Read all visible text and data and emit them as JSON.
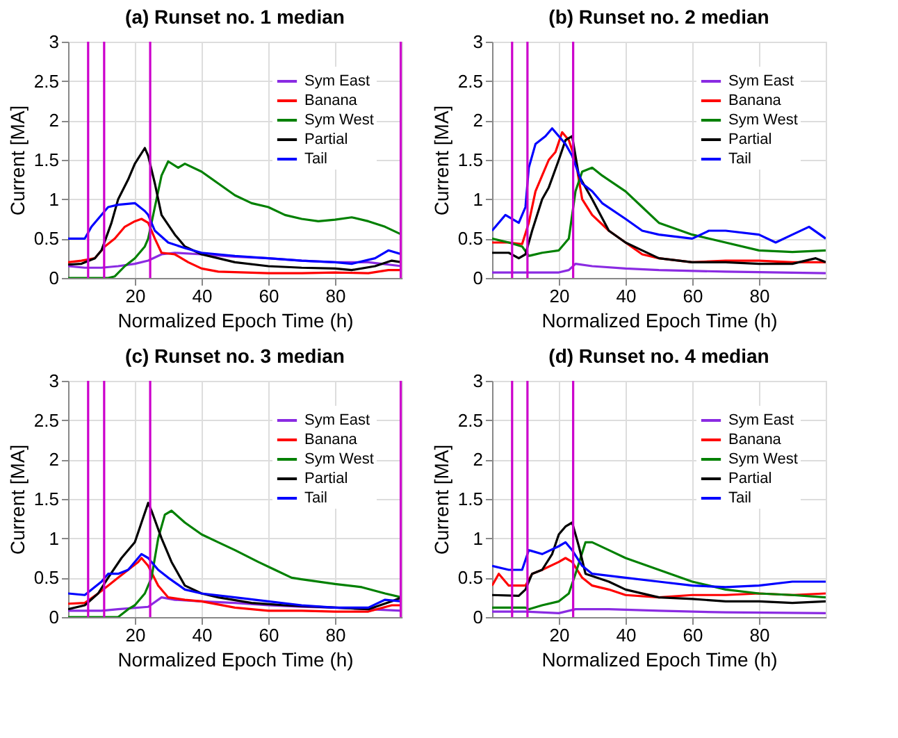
{
  "chart_data": [
    {
      "type": "line",
      "title": "(a) Runset no. 1 median",
      "xlabel": "Normalized Epoch Time (h)",
      "ylabel": "Current [MA]",
      "xlim": [
        0,
        100
      ],
      "xticks": [
        20,
        40,
        60,
        80
      ],
      "ylim": [
        0,
        3
      ],
      "yticks": [
        0,
        0.5,
        1,
        1.5,
        2,
        2.5,
        3
      ],
      "grid": true,
      "legend": "top right",
      "line_style": "solid",
      "ref_lines": [
        {
          "axis": "x",
          "value": 6,
          "color": "#cc00cc"
        },
        {
          "axis": "x",
          "value": 10.8,
          "color": "#cc00cc"
        },
        {
          "axis": "x",
          "value": 24.6,
          "color": "#cc00cc"
        },
        {
          "axis": "x",
          "value": 99.7,
          "color": "#cc00cc"
        }
      ],
      "series": [
        {
          "name": "Sym East",
          "color": "#8a2be2",
          "x": [
            0,
            5,
            10,
            15,
            20,
            24,
            28,
            32,
            40,
            50,
            60,
            70,
            80,
            90,
            100
          ],
          "values": [
            0.15,
            0.13,
            0.13,
            0.15,
            0.18,
            0.22,
            0.3,
            0.32,
            0.3,
            0.27,
            0.25,
            0.22,
            0.2,
            0.2,
            0.15
          ]
        },
        {
          "name": "Banana",
          "color": "#ff0000",
          "x": [
            0,
            4,
            8,
            11,
            14,
            17,
            20,
            22,
            24,
            26,
            28,
            32,
            36,
            40,
            45,
            60,
            70,
            80,
            90,
            96,
            100
          ],
          "values": [
            0.2,
            0.22,
            0.25,
            0.4,
            0.5,
            0.65,
            0.72,
            0.75,
            0.7,
            0.5,
            0.32,
            0.3,
            0.2,
            0.12,
            0.08,
            0.06,
            0.06,
            0.07,
            0.06,
            0.1,
            0.1
          ]
        },
        {
          "name": "Sym West",
          "color": "#008000",
          "x": [
            0,
            12,
            14,
            17,
            20,
            23,
            24,
            26,
            28,
            30,
            33,
            35,
            40,
            45,
            50,
            55,
            60,
            65,
            70,
            75,
            80,
            85,
            90,
            95,
            100
          ],
          "values": [
            0,
            0,
            0.02,
            0.15,
            0.25,
            0.4,
            0.5,
            0.9,
            1.3,
            1.48,
            1.4,
            1.45,
            1.35,
            1.2,
            1.05,
            0.95,
            0.9,
            0.8,
            0.75,
            0.72,
            0.74,
            0.77,
            0.72,
            0.65,
            0.55
          ]
        },
        {
          "name": "Partial",
          "color": "#000000",
          "x": [
            0,
            4,
            8,
            10,
            13,
            15,
            18,
            20,
            23,
            24,
            26,
            28,
            32,
            35,
            40,
            45,
            50,
            60,
            70,
            80,
            85,
            92,
            97,
            100
          ],
          "values": [
            0.17,
            0.18,
            0.25,
            0.35,
            0.7,
            1.0,
            1.25,
            1.45,
            1.65,
            1.55,
            1.2,
            0.8,
            0.55,
            0.4,
            0.3,
            0.25,
            0.2,
            0.15,
            0.13,
            0.12,
            0.1,
            0.15,
            0.22,
            0.2
          ]
        },
        {
          "name": "Tail",
          "color": "#0000ff",
          "x": [
            0,
            5,
            7,
            10,
            12,
            15,
            20,
            23,
            24,
            26,
            30,
            35,
            40,
            50,
            60,
            70,
            80,
            85,
            92,
            96,
            100
          ],
          "values": [
            0.5,
            0.5,
            0.65,
            0.8,
            0.9,
            0.93,
            0.95,
            0.85,
            0.8,
            0.6,
            0.45,
            0.38,
            0.32,
            0.28,
            0.25,
            0.22,
            0.2,
            0.18,
            0.25,
            0.35,
            0.3
          ]
        }
      ]
    },
    {
      "type": "line",
      "title": "(b) Runset no. 2 median",
      "xlabel": "Normalized Epoch Time (h)",
      "ylabel": "Current [MA]",
      "xlim": [
        0,
        100
      ],
      "xticks": [
        20,
        40,
        60,
        80
      ],
      "ylim": [
        0,
        3
      ],
      "yticks": [
        0,
        0.5,
        1,
        1.5,
        2,
        2.5,
        3
      ],
      "grid": true,
      "legend": "top right",
      "line_style": "solid",
      "ref_lines": [
        {
          "axis": "x",
          "value": 6,
          "color": "#cc00cc"
        },
        {
          "axis": "x",
          "value": 10.6,
          "color": "#cc00cc"
        },
        {
          "axis": "x",
          "value": 24.3,
          "color": "#cc00cc"
        }
      ],
      "series": [
        {
          "name": "Sym East",
          "color": "#8a2be2",
          "x": [
            0,
            20,
            23,
            25,
            30,
            40,
            50,
            70,
            100
          ],
          "values": [
            0.07,
            0.07,
            0.1,
            0.18,
            0.15,
            0.12,
            0.1,
            0.08,
            0.06
          ]
        },
        {
          "name": "Banana",
          "color": "#ff0000",
          "x": [
            0,
            5,
            9,
            11,
            13,
            15,
            17,
            19,
            21,
            23,
            25,
            27,
            30,
            35,
            40,
            45,
            50,
            60,
            70,
            80,
            90,
            100
          ],
          "values": [
            0.45,
            0.45,
            0.43,
            0.7,
            1.1,
            1.3,
            1.5,
            1.6,
            1.85,
            1.75,
            1.5,
            1.0,
            0.8,
            0.6,
            0.45,
            0.3,
            0.25,
            0.2,
            0.22,
            0.22,
            0.2,
            0.2
          ]
        },
        {
          "name": "Sym West",
          "color": "#008000",
          "x": [
            0,
            5,
            9,
            11,
            15,
            20,
            23,
            25,
            27,
            30,
            33,
            40,
            45,
            50,
            60,
            70,
            80,
            90,
            100
          ],
          "values": [
            0.5,
            0.45,
            0.4,
            0.28,
            0.32,
            0.35,
            0.5,
            1.1,
            1.35,
            1.4,
            1.3,
            1.1,
            0.9,
            0.7,
            0.55,
            0.45,
            0.35,
            0.33,
            0.35
          ]
        },
        {
          "name": "Partial",
          "color": "#000000",
          "x": [
            0,
            5,
            8,
            10,
            12,
            15,
            17,
            20,
            22,
            24,
            26,
            30,
            35,
            40,
            45,
            50,
            60,
            70,
            80,
            90,
            97,
            100
          ],
          "values": [
            0.32,
            0.32,
            0.25,
            0.3,
            0.6,
            1.0,
            1.15,
            1.5,
            1.75,
            1.8,
            1.3,
            1.0,
            0.6,
            0.45,
            0.35,
            0.25,
            0.2,
            0.2,
            0.18,
            0.18,
            0.25,
            0.2
          ]
        },
        {
          "name": "Tail",
          "color": "#0000ff",
          "x": [
            0,
            4,
            8,
            10,
            11,
            13,
            16,
            18,
            22,
            24,
            27,
            30,
            33,
            40,
            45,
            50,
            60,
            65,
            70,
            80,
            85,
            90,
            95,
            100
          ],
          "values": [
            0.6,
            0.8,
            0.7,
            0.9,
            1.4,
            1.7,
            1.8,
            1.9,
            1.7,
            1.55,
            1.2,
            1.1,
            0.95,
            0.75,
            0.6,
            0.55,
            0.5,
            0.6,
            0.6,
            0.55,
            0.45,
            0.55,
            0.65,
            0.5
          ]
        }
      ]
    },
    {
      "type": "line",
      "title": "(c) Runset no. 3 median",
      "xlabel": "Normalized Epoch Time (h)",
      "ylabel": "Current [MA]",
      "xlim": [
        0,
        100
      ],
      "xticks": [
        20,
        40,
        60,
        80
      ],
      "ylim": [
        0,
        3
      ],
      "yticks": [
        0,
        0.5,
        1,
        1.5,
        2,
        2.5,
        3
      ],
      "grid": true,
      "legend": "top right",
      "line_style": "solid",
      "ref_lines": [
        {
          "axis": "x",
          "value": 6,
          "color": "#cc00cc"
        },
        {
          "axis": "x",
          "value": 10.8,
          "color": "#cc00cc"
        },
        {
          "axis": "x",
          "value": 24.6,
          "color": "#cc00cc"
        },
        {
          "axis": "x",
          "value": 99.7,
          "color": "#cc00cc"
        }
      ],
      "series": [
        {
          "name": "Sym East",
          "color": "#8a2be2",
          "x": [
            0,
            10,
            15,
            24,
            28,
            32,
            40,
            50,
            60,
            70,
            80,
            90,
            100
          ],
          "values": [
            0.08,
            0.08,
            0.1,
            0.13,
            0.25,
            0.22,
            0.2,
            0.18,
            0.15,
            0.13,
            0.12,
            0.1,
            0.08
          ]
        },
        {
          "name": "Banana",
          "color": "#ff0000",
          "x": [
            0,
            5,
            9,
            12,
            15,
            18,
            21,
            22,
            24,
            27,
            30,
            35,
            40,
            50,
            60,
            70,
            80,
            90,
            97,
            100
          ],
          "values": [
            0.17,
            0.18,
            0.3,
            0.4,
            0.5,
            0.6,
            0.7,
            0.75,
            0.65,
            0.4,
            0.25,
            0.22,
            0.2,
            0.12,
            0.08,
            0.08,
            0.07,
            0.07,
            0.15,
            0.15
          ]
        },
        {
          "name": "Sym West",
          "color": "#008000",
          "x": [
            0,
            15,
            18,
            20,
            23,
            25,
            27,
            29,
            31,
            35,
            40,
            45,
            50,
            57,
            62,
            67,
            70,
            80,
            88,
            95,
            100
          ],
          "values": [
            0,
            0,
            0.1,
            0.15,
            0.3,
            0.5,
            1.0,
            1.3,
            1.35,
            1.2,
            1.05,
            0.95,
            0.85,
            0.7,
            0.6,
            0.5,
            0.48,
            0.42,
            0.38,
            0.3,
            0.25
          ]
        },
        {
          "name": "Partial",
          "color": "#000000",
          "x": [
            0,
            5,
            9,
            12,
            16,
            20,
            22,
            24,
            25,
            28,
            31,
            35,
            40,
            45,
            55,
            65,
            80,
            90,
            97,
            100
          ],
          "values": [
            0.1,
            0.15,
            0.3,
            0.5,
            0.75,
            0.95,
            1.2,
            1.45,
            1.35,
            1.0,
            0.7,
            0.4,
            0.3,
            0.25,
            0.18,
            0.15,
            0.12,
            0.1,
            0.2,
            0.25
          ]
        },
        {
          "name": "Tail",
          "color": "#0000ff",
          "x": [
            0,
            5,
            10,
            12,
            15,
            18,
            22,
            24,
            27,
            30,
            35,
            40,
            50,
            60,
            70,
            80,
            90,
            95,
            100
          ],
          "values": [
            0.3,
            0.28,
            0.45,
            0.55,
            0.55,
            0.6,
            0.8,
            0.75,
            0.6,
            0.5,
            0.35,
            0.3,
            0.25,
            0.2,
            0.15,
            0.12,
            0.12,
            0.22,
            0.2
          ]
        }
      ]
    },
    {
      "type": "line",
      "title": "(d) Runset no. 4 median",
      "xlabel": "Normalized Epoch Time (h)",
      "ylabel": "Current [MA]",
      "xlim": [
        0,
        100
      ],
      "xticks": [
        20,
        40,
        60,
        80
      ],
      "ylim": [
        0,
        3
      ],
      "yticks": [
        0,
        0.5,
        1,
        1.5,
        2,
        2.5,
        3
      ],
      "grid": true,
      "legend": "top right",
      "line_style": "solid",
      "ref_lines": [
        {
          "axis": "x",
          "value": 6,
          "color": "#cc00cc"
        },
        {
          "axis": "x",
          "value": 10.6,
          "color": "#cc00cc"
        },
        {
          "axis": "x",
          "value": 24.3,
          "color": "#cc00cc"
        }
      ],
      "series": [
        {
          "name": "Sym East",
          "color": "#8a2be2",
          "x": [
            0,
            10,
            20,
            25,
            35,
            50,
            70,
            100
          ],
          "values": [
            0.07,
            0.07,
            0.05,
            0.1,
            0.1,
            0.08,
            0.06,
            0.05
          ]
        },
        {
          "name": "Banana",
          "color": "#ff0000",
          "x": [
            0,
            2,
            5,
            10,
            12,
            15,
            20,
            22,
            24,
            27,
            30,
            35,
            40,
            50,
            60,
            70,
            80,
            90,
            100
          ],
          "values": [
            0.4,
            0.55,
            0.4,
            0.4,
            0.55,
            0.6,
            0.7,
            0.75,
            0.7,
            0.5,
            0.4,
            0.35,
            0.28,
            0.25,
            0.28,
            0.28,
            0.3,
            0.28,
            0.3
          ]
        },
        {
          "name": "Sym West",
          "color": "#008000",
          "x": [
            0,
            10,
            11,
            15,
            20,
            23,
            25,
            28,
            30,
            35,
            40,
            50,
            60,
            70,
            80,
            90,
            100
          ],
          "values": [
            0.12,
            0.12,
            0.1,
            0.15,
            0.2,
            0.3,
            0.55,
            0.95,
            0.95,
            0.85,
            0.75,
            0.6,
            0.45,
            0.35,
            0.3,
            0.28,
            0.25
          ]
        },
        {
          "name": "Partial",
          "color": "#000000",
          "x": [
            0,
            8,
            10,
            12,
            15,
            18,
            20,
            22,
            24,
            26,
            28,
            35,
            40,
            50,
            60,
            70,
            80,
            90,
            100
          ],
          "values": [
            0.28,
            0.27,
            0.35,
            0.55,
            0.6,
            0.8,
            1.05,
            1.15,
            1.2,
            0.9,
            0.55,
            0.45,
            0.35,
            0.25,
            0.23,
            0.2,
            0.2,
            0.18,
            0.2
          ]
        },
        {
          "name": "Tail",
          "color": "#0000ff",
          "x": [
            0,
            5,
            9,
            11,
            15,
            20,
            22,
            24,
            27,
            30,
            40,
            50,
            60,
            70,
            80,
            90,
            100
          ],
          "values": [
            0.65,
            0.6,
            0.6,
            0.85,
            0.8,
            0.9,
            0.95,
            0.85,
            0.65,
            0.55,
            0.5,
            0.45,
            0.4,
            0.38,
            0.4,
            0.45,
            0.45
          ]
        }
      ]
    }
  ]
}
